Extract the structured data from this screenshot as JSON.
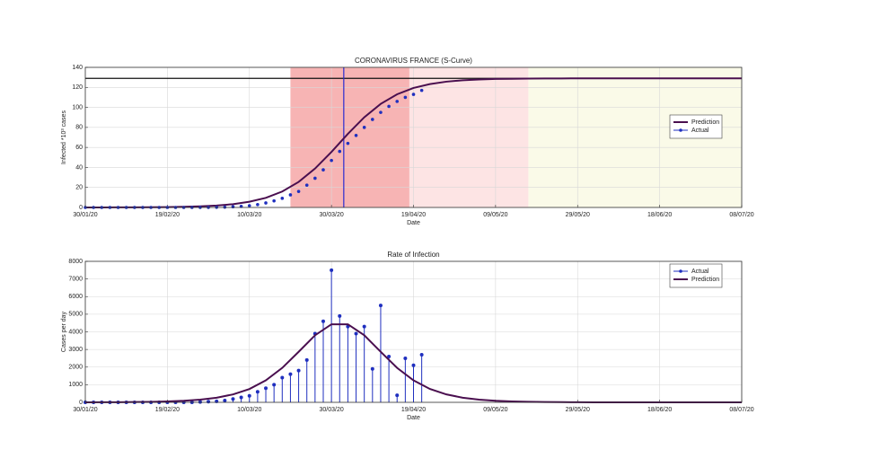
{
  "chart_data": [
    {
      "type": "line",
      "title": "CORONAVIRUS FRANCE (S-Curve)",
      "xlabel": "Date",
      "ylabel": "Infected *10³ cases",
      "xlim": [
        "30/01/20",
        "08/07/20"
      ],
      "xticks": [
        "30/01/20",
        "19/02/20",
        "10/03/20",
        "30/03/20",
        "19/04/20",
        "09/05/20",
        "29/05/20",
        "18/06/20",
        "08/07/20"
      ],
      "ylim": [
        0,
        140
      ],
      "yticks": [
        0,
        20,
        40,
        60,
        80,
        100,
        120,
        140
      ],
      "grid": true,
      "legend": "center right",
      "bands": [
        {
          "x": [
            "20/03/20",
            "18/04/20"
          ],
          "color": "#f7b4b4"
        },
        {
          "x": [
            "18/04/20",
            "17/05/20"
          ],
          "color": "#fde4e4"
        },
        {
          "x": [
            "17/05/20",
            "08/07/20"
          ],
          "color": "#fafae8"
        }
      ],
      "hline": 129,
      "hline_color": "#111111",
      "vline": "02/04/20",
      "vline_color": "#2a2ad0",
      "series": [
        {
          "name": "Prediction",
          "color": "#4a0f4f",
          "style": "line",
          "x": [
            "30/01/20",
            "03/02/20",
            "07/02/20",
            "11/02/20",
            "15/02/20",
            "19/02/20",
            "23/02/20",
            "27/02/20",
            "02/03/20",
            "06/03/20",
            "10/03/20",
            "14/03/20",
            "18/03/20",
            "22/03/20",
            "26/03/20",
            "30/03/20",
            "03/04/20",
            "07/04/20",
            "11/04/20",
            "15/04/20",
            "19/04/20",
            "23/04/20",
            "27/04/20",
            "01/05/20",
            "05/05/20",
            "09/05/20",
            "13/05/20",
            "17/05/20",
            "21/05/20",
            "25/05/20",
            "29/05/20",
            "02/06/20",
            "06/06/20",
            "10/06/20",
            "14/06/20",
            "18/06/20",
            "22/06/20",
            "26/06/20",
            "30/06/20",
            "04/07/20",
            "08/07/20"
          ],
          "values": [
            0.02,
            0.04,
            0.07,
            0.12,
            0.21,
            0.36,
            0.63,
            1.1,
            1.9,
            3.3,
            5.7,
            9.6,
            15.9,
            25.5,
            38.9,
            55.5,
            73.5,
            90.1,
            103.5,
            113.1,
            119.4,
            123.3,
            125.7,
            127.1,
            127.9,
            128.4,
            128.6,
            128.8,
            128.9,
            128.9,
            129,
            129,
            129,
            129,
            129,
            129,
            129,
            129,
            129,
            129,
            129
          ]
        },
        {
          "name": "Actual",
          "color": "#1f2fbf",
          "style": "markers",
          "x": [
            "30/01/20",
            "01/02/20",
            "03/02/20",
            "05/02/20",
            "07/02/20",
            "09/02/20",
            "11/02/20",
            "13/02/20",
            "15/02/20",
            "17/02/20",
            "19/02/20",
            "21/02/20",
            "23/02/20",
            "25/02/20",
            "27/02/20",
            "29/02/20",
            "02/03/20",
            "04/03/20",
            "06/03/20",
            "08/03/20",
            "10/03/20",
            "12/03/20",
            "14/03/20",
            "16/03/20",
            "18/03/20",
            "20/03/20",
            "22/03/20",
            "24/03/20",
            "26/03/20",
            "28/03/20",
            "30/03/20",
            "01/04/20",
            "03/04/20",
            "05/04/20",
            "07/04/20",
            "09/04/20",
            "11/04/20",
            "13/04/20",
            "15/04/20",
            "17/04/20",
            "19/04/20",
            "21/04/20"
          ],
          "values": [
            0,
            0,
            0,
            0,
            0,
            0,
            0,
            0,
            0,
            0,
            0,
            0,
            0,
            0,
            0.1,
            0.1,
            0.2,
            0.3,
            0.7,
            1.1,
            1.8,
            2.9,
            4.5,
            6.6,
            9.1,
            12.6,
            16,
            22.3,
            29.2,
            37.6,
            47,
            56,
            64,
            72,
            80,
            88,
            95,
            101,
            106,
            110,
            113,
            117
          ]
        }
      ]
    },
    {
      "type": "line",
      "title": "Rate of Infection",
      "xlabel": "Date",
      "ylabel": "Cases per day",
      "xlim": [
        "30/01/20",
        "08/07/20"
      ],
      "xticks": [
        "30/01/20",
        "19/02/20",
        "10/03/20",
        "30/03/20",
        "19/04/20",
        "09/05/20",
        "29/05/20",
        "18/06/20",
        "08/07/20"
      ],
      "ylim": [
        0,
        8000
      ],
      "yticks": [
        0,
        1000,
        2000,
        3000,
        4000,
        5000,
        6000,
        7000,
        8000
      ],
      "grid": true,
      "legend": "upper right",
      "series": [
        {
          "name": "Actual",
          "color": "#1f2fbf",
          "style": "stem",
          "x": [
            "30/01/20",
            "01/02/20",
            "03/02/20",
            "05/02/20",
            "07/02/20",
            "09/02/20",
            "11/02/20",
            "13/02/20",
            "15/02/20",
            "17/02/20",
            "19/02/20",
            "21/02/20",
            "23/02/20",
            "25/02/20",
            "27/02/20",
            "29/02/20",
            "02/03/20",
            "04/03/20",
            "06/03/20",
            "08/03/20",
            "10/03/20",
            "12/03/20",
            "14/03/20",
            "16/03/20",
            "18/03/20",
            "20/03/20",
            "22/03/20",
            "24/03/20",
            "26/03/20",
            "28/03/20",
            "30/03/20",
            "01/04/20",
            "03/04/20",
            "05/04/20",
            "07/04/20",
            "09/04/20",
            "11/04/20",
            "13/04/20",
            "15/04/20",
            "17/04/20",
            "19/04/20",
            "21/04/20"
          ],
          "values": [
            0,
            0,
            0,
            0,
            0,
            0,
            0,
            0,
            0,
            0,
            0,
            0,
            0,
            0,
            20,
            40,
            60,
            100,
            190,
            280,
            370,
            600,
            800,
            1000,
            1400,
            1600,
            1800,
            2400,
            3900,
            4600,
            7500,
            4900,
            4300,
            3900,
            4300,
            1900,
            5500,
            2600,
            400,
            2500,
            2100,
            2700
          ]
        },
        {
          "name": "Prediction",
          "color": "#4a0f4f",
          "style": "line",
          "x": [
            "30/01/20",
            "03/02/20",
            "07/02/20",
            "11/02/20",
            "15/02/20",
            "19/02/20",
            "23/02/20",
            "27/02/20",
            "02/03/20",
            "06/03/20",
            "10/03/20",
            "14/03/20",
            "18/03/20",
            "22/03/20",
            "26/03/20",
            "30/03/20",
            "03/04/20",
            "07/04/20",
            "11/04/20",
            "15/04/20",
            "19/04/20",
            "23/04/20",
            "27/04/20",
            "01/05/20",
            "05/05/20",
            "09/05/20",
            "13/05/20",
            "17/05/20",
            "21/05/20",
            "25/05/20",
            "29/05/20",
            "02/06/20",
            "06/06/20",
            "10/06/20",
            "14/06/20",
            "18/06/20",
            "22/06/20",
            "26/06/20",
            "30/06/20",
            "04/07/20",
            "08/07/20"
          ],
          "values": [
            3,
            5,
            9,
            16,
            28,
            50,
            88,
            152,
            263,
            450,
            757,
            1245,
            1954,
            2866,
            3804,
            4428,
            4428,
            3805,
            2868,
            1956,
            1246,
            759,
            451,
            263,
            152,
            88,
            50,
            29,
            17,
            10,
            6,
            3,
            2,
            1,
            1,
            0,
            0,
            0,
            0,
            0,
            0
          ]
        }
      ]
    }
  ]
}
